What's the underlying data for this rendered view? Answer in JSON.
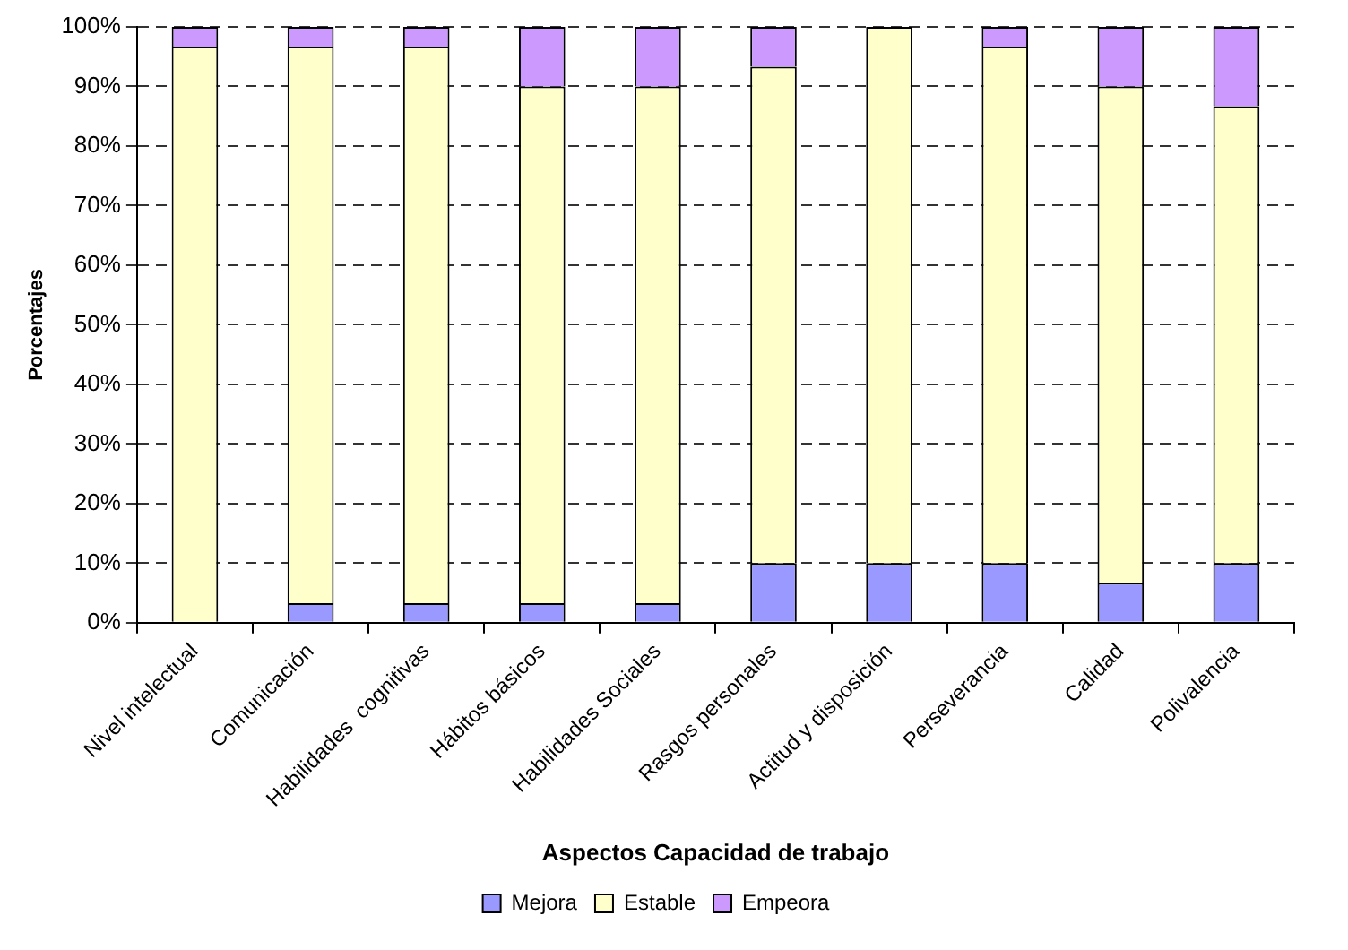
{
  "chart_data": {
    "type": "bar",
    "stacked": true,
    "xlabel": "Aspectos Capacidad de trabajo",
    "ylabel": "Porcentajes",
    "categories": [
      "Nivel intelectual",
      "Comunicación",
      "Habilidades  cognitivas",
      "Hábitos básicos",
      "Habilidades Sociales",
      "Rasgos personales",
      "Actitud y disposición",
      "Perseverancia",
      "Calidad",
      "Polivalencia"
    ],
    "series": [
      {
        "name": "Mejora",
        "color": "#9999ff",
        "values": [
          0,
          3.3,
          3.3,
          3.3,
          3.3,
          10,
          10,
          10,
          6.7,
          10
        ]
      },
      {
        "name": "Estable",
        "color": "#ffffcc",
        "values": [
          96.7,
          93.4,
          93.4,
          86.7,
          86.7,
          83.3,
          90,
          86.7,
          83.3,
          76.7
        ]
      },
      {
        "name": "Empeora",
        "color": "#cc99ff",
        "values": [
          3.3,
          3.3,
          3.3,
          10,
          10,
          6.7,
          0,
          3.3,
          10,
          13.3
        ]
      }
    ],
    "ylim": [
      0,
      100
    ],
    "yticks": [
      {
        "value": 0,
        "label": "0%"
      },
      {
        "value": 10,
        "label": "10%"
      },
      {
        "value": 20,
        "label": "20%"
      },
      {
        "value": 30,
        "label": "30%"
      },
      {
        "value": 40,
        "label": "40%"
      },
      {
        "value": 50,
        "label": "50%"
      },
      {
        "value": 60,
        "label": "60%"
      },
      {
        "value": 70,
        "label": "70%"
      },
      {
        "value": 80,
        "label": "80%"
      },
      {
        "value": 90,
        "label": "90%"
      },
      {
        "value": 100,
        "label": "100%"
      }
    ],
    "grid": "y",
    "legend": "bottom"
  }
}
